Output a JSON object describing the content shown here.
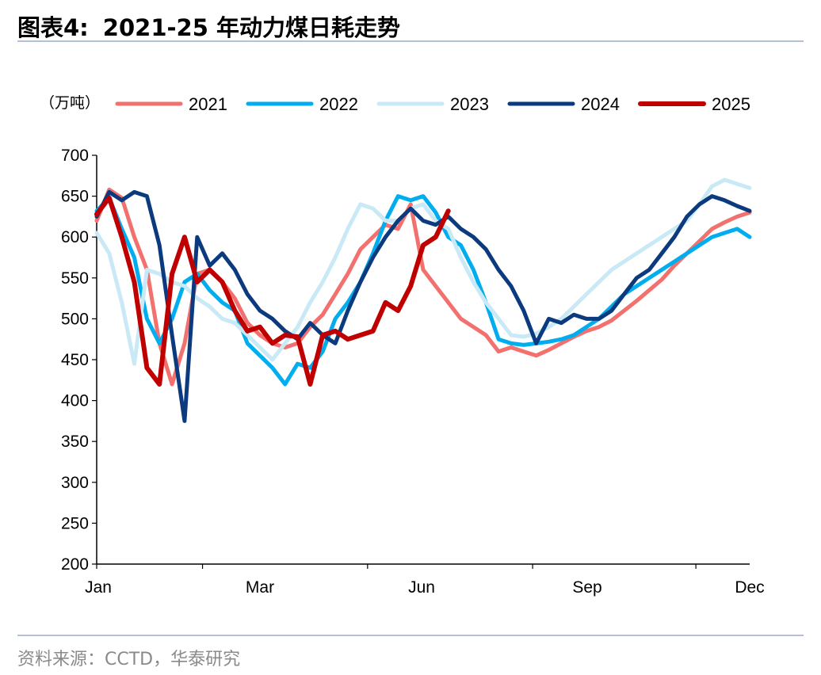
{
  "header": {
    "figure_label": "图表4:",
    "title": "2021-25 年动力煤日耗走势"
  },
  "footer": {
    "source": "资料来源：CCTD，华泰研究"
  },
  "chart_data": {
    "type": "line",
    "unit_label": "（万吨）",
    "x_ticks": [
      "Jan",
      "Mar",
      "Jun",
      "Sep",
      "Dec"
    ],
    "y_ticks": [
      700,
      650,
      600,
      550,
      500,
      450,
      400,
      350,
      300,
      250,
      200
    ],
    "ylim": [
      200,
      700
    ],
    "x_range_days": [
      1,
      365
    ],
    "legend_position": "top",
    "series": [
      {
        "name": "2021",
        "color": "#f2716e",
        "width": 5,
        "x": [
          1,
          8,
          15,
          22,
          29,
          36,
          43,
          50,
          57,
          64,
          71,
          78,
          85,
          92,
          99,
          106,
          113,
          120,
          127,
          134,
          141,
          148,
          155,
          162,
          169,
          176,
          183,
          190,
          197,
          204,
          211,
          218,
          225,
          232,
          239,
          246,
          253,
          260,
          267,
          274,
          281,
          288,
          295,
          302,
          309,
          316,
          323,
          330,
          337,
          344,
          351,
          358,
          365
        ],
        "values": [
          620,
          658,
          648,
          600,
          560,
          470,
          420,
          470,
          555,
          560,
          545,
          525,
          495,
          480,
          470,
          465,
          470,
          490,
          505,
          530,
          555,
          585,
          600,
          615,
          610,
          640,
          560,
          540,
          520,
          500,
          490,
          480,
          460,
          465,
          460,
          455,
          462,
          470,
          478,
          485,
          490,
          498,
          510,
          522,
          535,
          548,
          565,
          580,
          595,
          610,
          618,
          625,
          630
        ]
      },
      {
        "name": "2022",
        "color": "#00aeef",
        "width": 5,
        "x": [
          1,
          8,
          15,
          22,
          29,
          36,
          43,
          50,
          57,
          64,
          71,
          78,
          85,
          92,
          99,
          106,
          113,
          120,
          127,
          134,
          141,
          148,
          155,
          162,
          169,
          176,
          183,
          190,
          197,
          204,
          211,
          218,
          225,
          232,
          239,
          246,
          253,
          260,
          267,
          274,
          281,
          288,
          295,
          302,
          309,
          316,
          323,
          330,
          337,
          344,
          351,
          358,
          365
        ],
        "values": [
          632,
          648,
          610,
          575,
          500,
          470,
          500,
          545,
          555,
          535,
          520,
          510,
          470,
          455,
          440,
          420,
          445,
          440,
          460,
          500,
          520,
          545,
          580,
          620,
          650,
          645,
          650,
          630,
          600,
          590,
          560,
          520,
          475,
          470,
          468,
          470,
          472,
          475,
          480,
          490,
          500,
          515,
          530,
          540,
          550,
          560,
          570,
          580,
          590,
          600,
          605,
          610,
          600
        ]
      },
      {
        "name": "2023",
        "color": "#c9e9f6",
        "width": 5,
        "x": [
          1,
          8,
          15,
          22,
          29,
          36,
          43,
          50,
          57,
          64,
          71,
          78,
          85,
          92,
          99,
          106,
          113,
          120,
          127,
          134,
          141,
          148,
          155,
          162,
          169,
          176,
          183,
          190,
          197,
          204,
          211,
          218,
          225,
          232,
          239,
          246,
          253,
          260,
          267,
          274,
          281,
          288,
          295,
          302,
          309,
          316,
          323,
          330,
          337,
          344,
          351,
          358,
          365
        ],
        "values": [
          605,
          580,
          520,
          445,
          560,
          555,
          545,
          540,
          525,
          515,
          500,
          495,
          480,
          465,
          450,
          470,
          490,
          520,
          545,
          575,
          610,
          640,
          635,
          620,
          620,
          635,
          640,
          620,
          610,
          575,
          545,
          520,
          500,
          480,
          478,
          482,
          490,
          500,
          515,
          530,
          545,
          560,
          570,
          580,
          590,
          600,
          610,
          620,
          640,
          662,
          670,
          665,
          660
        ]
      },
      {
        "name": "2024",
        "color": "#0b3a7e",
        "width": 5,
        "x": [
          1,
          8,
          15,
          22,
          29,
          36,
          43,
          50,
          57,
          64,
          71,
          78,
          85,
          92,
          99,
          106,
          113,
          120,
          127,
          134,
          141,
          148,
          155,
          162,
          169,
          176,
          183,
          190,
          197,
          204,
          211,
          218,
          225,
          232,
          239,
          246,
          253,
          260,
          267,
          274,
          281,
          288,
          295,
          302,
          309,
          316,
          323,
          330,
          337,
          344,
          351,
          358,
          365
        ],
        "values": [
          625,
          655,
          645,
          655,
          650,
          590,
          480,
          375,
          600,
          565,
          580,
          560,
          530,
          510,
          500,
          485,
          475,
          495,
          480,
          470,
          510,
          545,
          575,
          600,
          620,
          635,
          620,
          615,
          625,
          610,
          600,
          585,
          560,
          540,
          510,
          470,
          500,
          495,
          505,
          500,
          500,
          510,
          530,
          550,
          560,
          580,
          600,
          625,
          640,
          650,
          645,
          638,
          632
        ]
      },
      {
        "name": "2025",
        "color": "#c00000",
        "width": 6,
        "x": [
          1,
          8,
          15,
          22,
          29,
          36,
          43,
          50,
          57,
          64,
          71,
          78,
          85,
          92,
          99,
          106,
          113,
          120,
          127,
          134,
          141,
          148,
          155,
          162,
          169,
          176,
          183,
          190,
          197
        ],
        "values": [
          628,
          648,
          600,
          545,
          440,
          420,
          555,
          600,
          545,
          560,
          545,
          510,
          485,
          490,
          470,
          480,
          478,
          420,
          480,
          485,
          475,
          480,
          485,
          520,
          510,
          540,
          590,
          600,
          632
        ]
      }
    ]
  }
}
